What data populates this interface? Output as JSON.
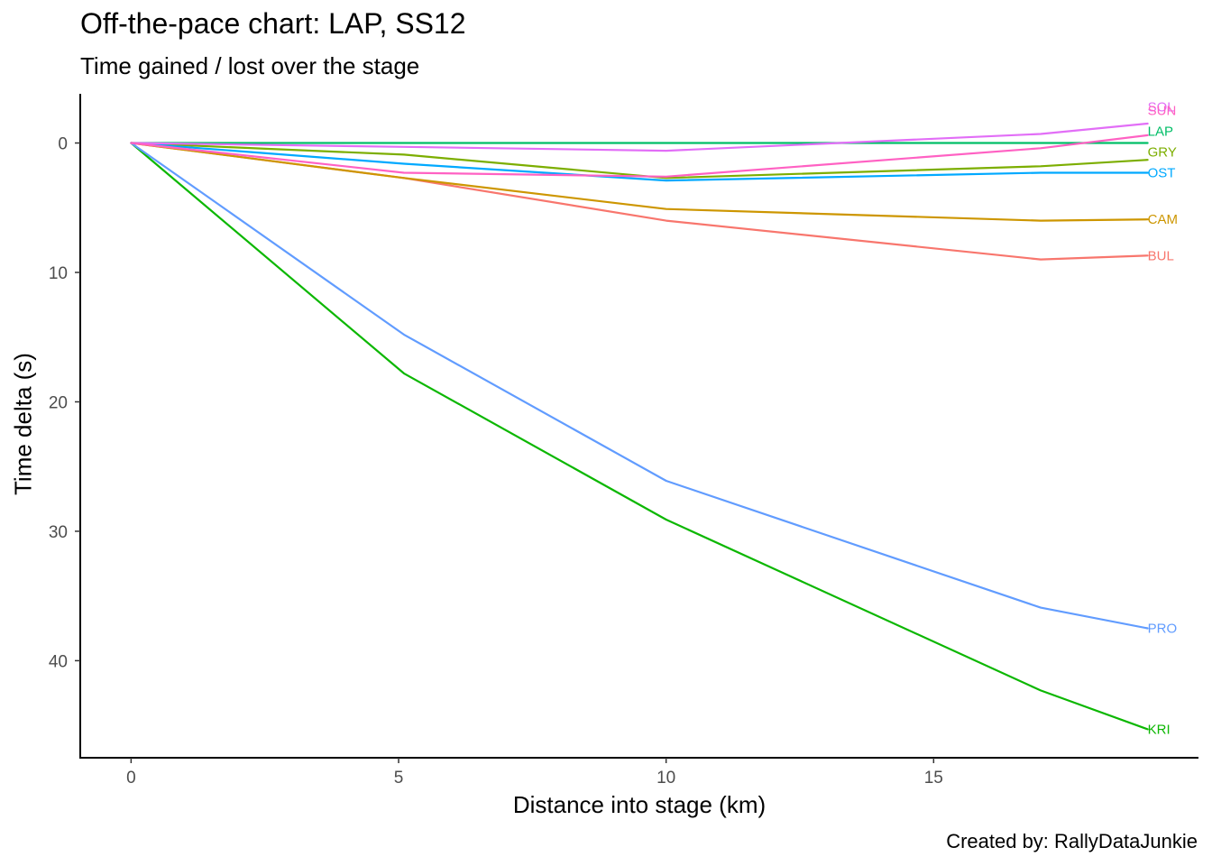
{
  "chart_data": {
    "type": "line",
    "title": "Off-the-pace chart: LAP, SS12",
    "subtitle": "Time gained / lost over the stage",
    "xlabel": "Distance into stage (km)",
    "ylabel": "Time delta (s)",
    "caption": "Created by: RallyDataJunkie",
    "x": [
      0,
      5.1,
      10,
      17,
      19
    ],
    "xlim": [
      -0.95,
      19.95
    ],
    "ylim": [
      -3.8,
      47.5
    ],
    "y_reversed": true,
    "xticks": [
      0,
      5,
      10,
      15
    ],
    "yticks": [
      0,
      10,
      20,
      30,
      40
    ],
    "grid": false,
    "legend": "none",
    "series": [
      {
        "name": "BUL",
        "color": "#F8766D",
        "values": [
          0,
          2.7,
          6.0,
          9.0,
          8.7
        ]
      },
      {
        "name": "CAM",
        "color": "#CD9600",
        "values": [
          0,
          2.7,
          5.1,
          6.0,
          5.9
        ]
      },
      {
        "name": "GRY",
        "color": "#7CAE00",
        "values": [
          0,
          0.9,
          2.7,
          1.8,
          1.3
        ]
      },
      {
        "name": "KRI",
        "color": "#0CB702",
        "values": [
          0,
          17.8,
          29.1,
          42.3,
          45.3
        ]
      },
      {
        "name": "LAP",
        "color": "#00BE67",
        "values": [
          0,
          0,
          0,
          0,
          0
        ]
      },
      {
        "name": "OST",
        "color": "#00A9FF",
        "values": [
          0,
          1.6,
          2.9,
          2.3,
          2.3
        ]
      },
      {
        "name": "PRO",
        "color": "#619CFF",
        "values": [
          0,
          14.8,
          26.1,
          35.9,
          37.5
        ]
      },
      {
        "name": "SOL",
        "color": "#E26EF7",
        "values": [
          0,
          0.3,
          0.6,
          -0.7,
          -1.5
        ]
      },
      {
        "name": "SUN",
        "color": "#FF61C3",
        "values": [
          0,
          2.3,
          2.6,
          0.4,
          -0.6
        ]
      }
    ],
    "end_labels": [
      {
        "text": "SOL",
        "series": "SOL",
        "y": -2.8,
        "color": "#E26EF7"
      },
      {
        "text": "SUN",
        "series": "SUN",
        "y": -2.5,
        "color": "#FF61C3"
      },
      {
        "text": "LAP",
        "series": "LAP",
        "y": -0.9,
        "color": "#00BE67"
      },
      {
        "text": "GRY",
        "series": "GRY",
        "y": 0.7,
        "color": "#7CAE00"
      },
      {
        "text": "OST",
        "series": "OST",
        "y": 2.3,
        "color": "#00A9FF"
      },
      {
        "text": "CAM",
        "series": "CAM",
        "y": 5.9,
        "color": "#CD9600"
      },
      {
        "text": "BUL",
        "series": "BUL",
        "y": 8.7,
        "color": "#F8766D"
      },
      {
        "text": "PRO",
        "series": "PRO",
        "y": 37.5,
        "color": "#619CFF"
      },
      {
        "text": "KRI",
        "series": "KRI",
        "y": 45.3,
        "color": "#0CB702"
      }
    ]
  }
}
